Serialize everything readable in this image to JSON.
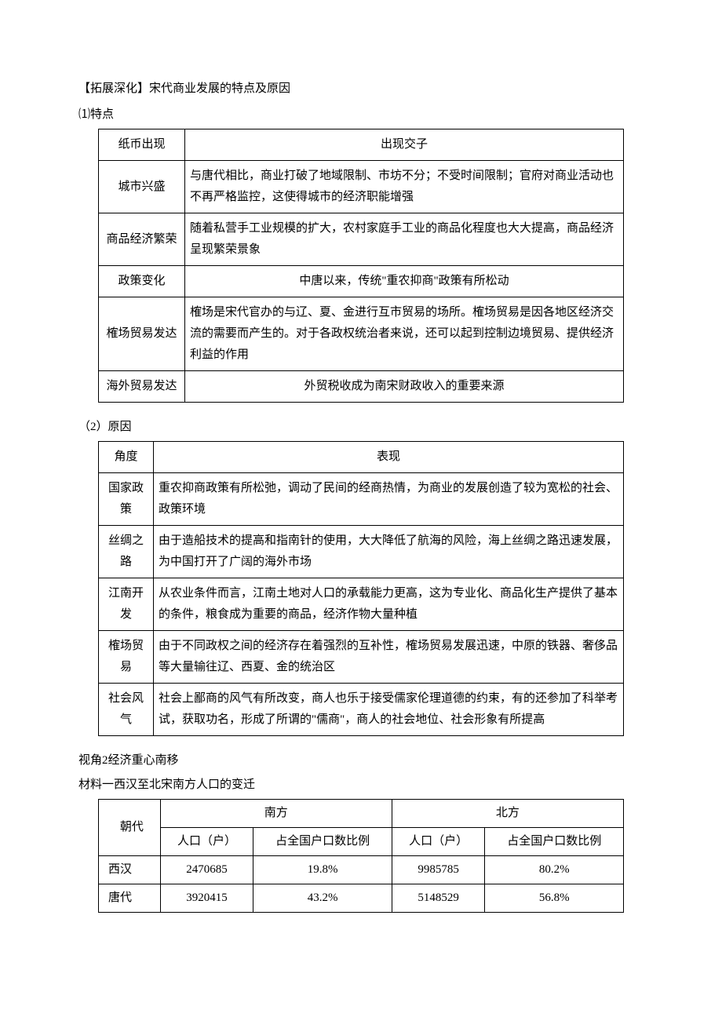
{
  "heading1": "【拓展深化】宋代商业发展的特点及原因",
  "sub1": "⑴特点",
  "table1": {
    "col1_width": 110,
    "rows": [
      {
        "label": "纸币出现",
        "desc": "出现交子",
        "center": true
      },
      {
        "label": "城市兴盛",
        "desc": "与唐代相比，商业打破了地域限制、市坊不分；不受时间限制；官府对商业活动也不再严格监控，这使得城市的经济职能增强",
        "center": false
      },
      {
        "label": "商品经济繁荣",
        "desc": "随着私营手工业规模的扩大，农村家庭手工业的商品化程度也大大提高，商品经济呈现繁荣景象",
        "center": false
      },
      {
        "label": "政策变化",
        "desc": "中唐以来，传统\"重农抑商\"政策有所松动",
        "center": true
      },
      {
        "label": "榷场贸易发达",
        "desc": "榷场是宋代官办的与辽、夏、金进行互市贸易的场所。榷场贸易是因各地区经济交流的需要而产生的。对于各政权统治者来说，还可以起到控制边境贸易、提供经济利益的作用",
        "center": false
      },
      {
        "label": "海外贸易发达",
        "desc": "外贸税收成为南宋财政收入的重要来源",
        "center": true
      }
    ]
  },
  "sub2": "（2）原因",
  "table2": {
    "header": {
      "c1": "角度",
      "c2": "表现"
    },
    "rows": [
      {
        "label": "国家政策",
        "desc": "重农抑商政策有所松弛，调动了民间的经商热情，为商业的发展创造了较为宽松的社会、政策环境"
      },
      {
        "label": "丝绸之路",
        "desc": "由于造船技术的提高和指南针的使用，大大降低了航海的风险，海上丝绸之路迅速发展，为中国打开了广阔的海外市场"
      },
      {
        "label": "江南开发",
        "desc": "从农业条件而言，江南土地对人口的承载能力更高，这为专业化、商品化生产提供了基本的条件，粮食成为重要的商品，经济作物大量种植"
      },
      {
        "label": "榷场贸易",
        "desc": "由于不同政权之间的经济存在着强烈的互补性，榷场贸易发展迅速，中原的铁器、奢侈品等大量输往辽、西夏、金的统治区"
      },
      {
        "label": "社会风气",
        "desc": "社会上鄙商的风气有所改变，商人也乐于接受儒家伦理道德的约束，有的还参加了科举考试，获取功名，形成了所谓的\"儒商\"，商人的社会地位、社会形象有所提高"
      }
    ]
  },
  "heading2": "视角2经济重心南移",
  "heading3": "材料一西汉至北宋南方人口的变迁",
  "table3": {
    "header_top": {
      "c1": "朝代",
      "c2": "南方",
      "c3": "北方"
    },
    "header_sub": {
      "a": "人口（户）",
      "b": "占全国户口数比例",
      "c": "人口（户）",
      "d": "占全国户口数比例"
    },
    "rows": [
      {
        "dyn": "西汉",
        "s_pop": "2470685",
        "s_pct": "19.8%",
        "n_pop": "9985785",
        "n_pct": "80.2%"
      },
      {
        "dyn": "唐代",
        "s_pop": "3920415",
        "s_pct": "43.2%",
        "n_pop": "5148529",
        "n_pct": "56.8%"
      }
    ]
  }
}
